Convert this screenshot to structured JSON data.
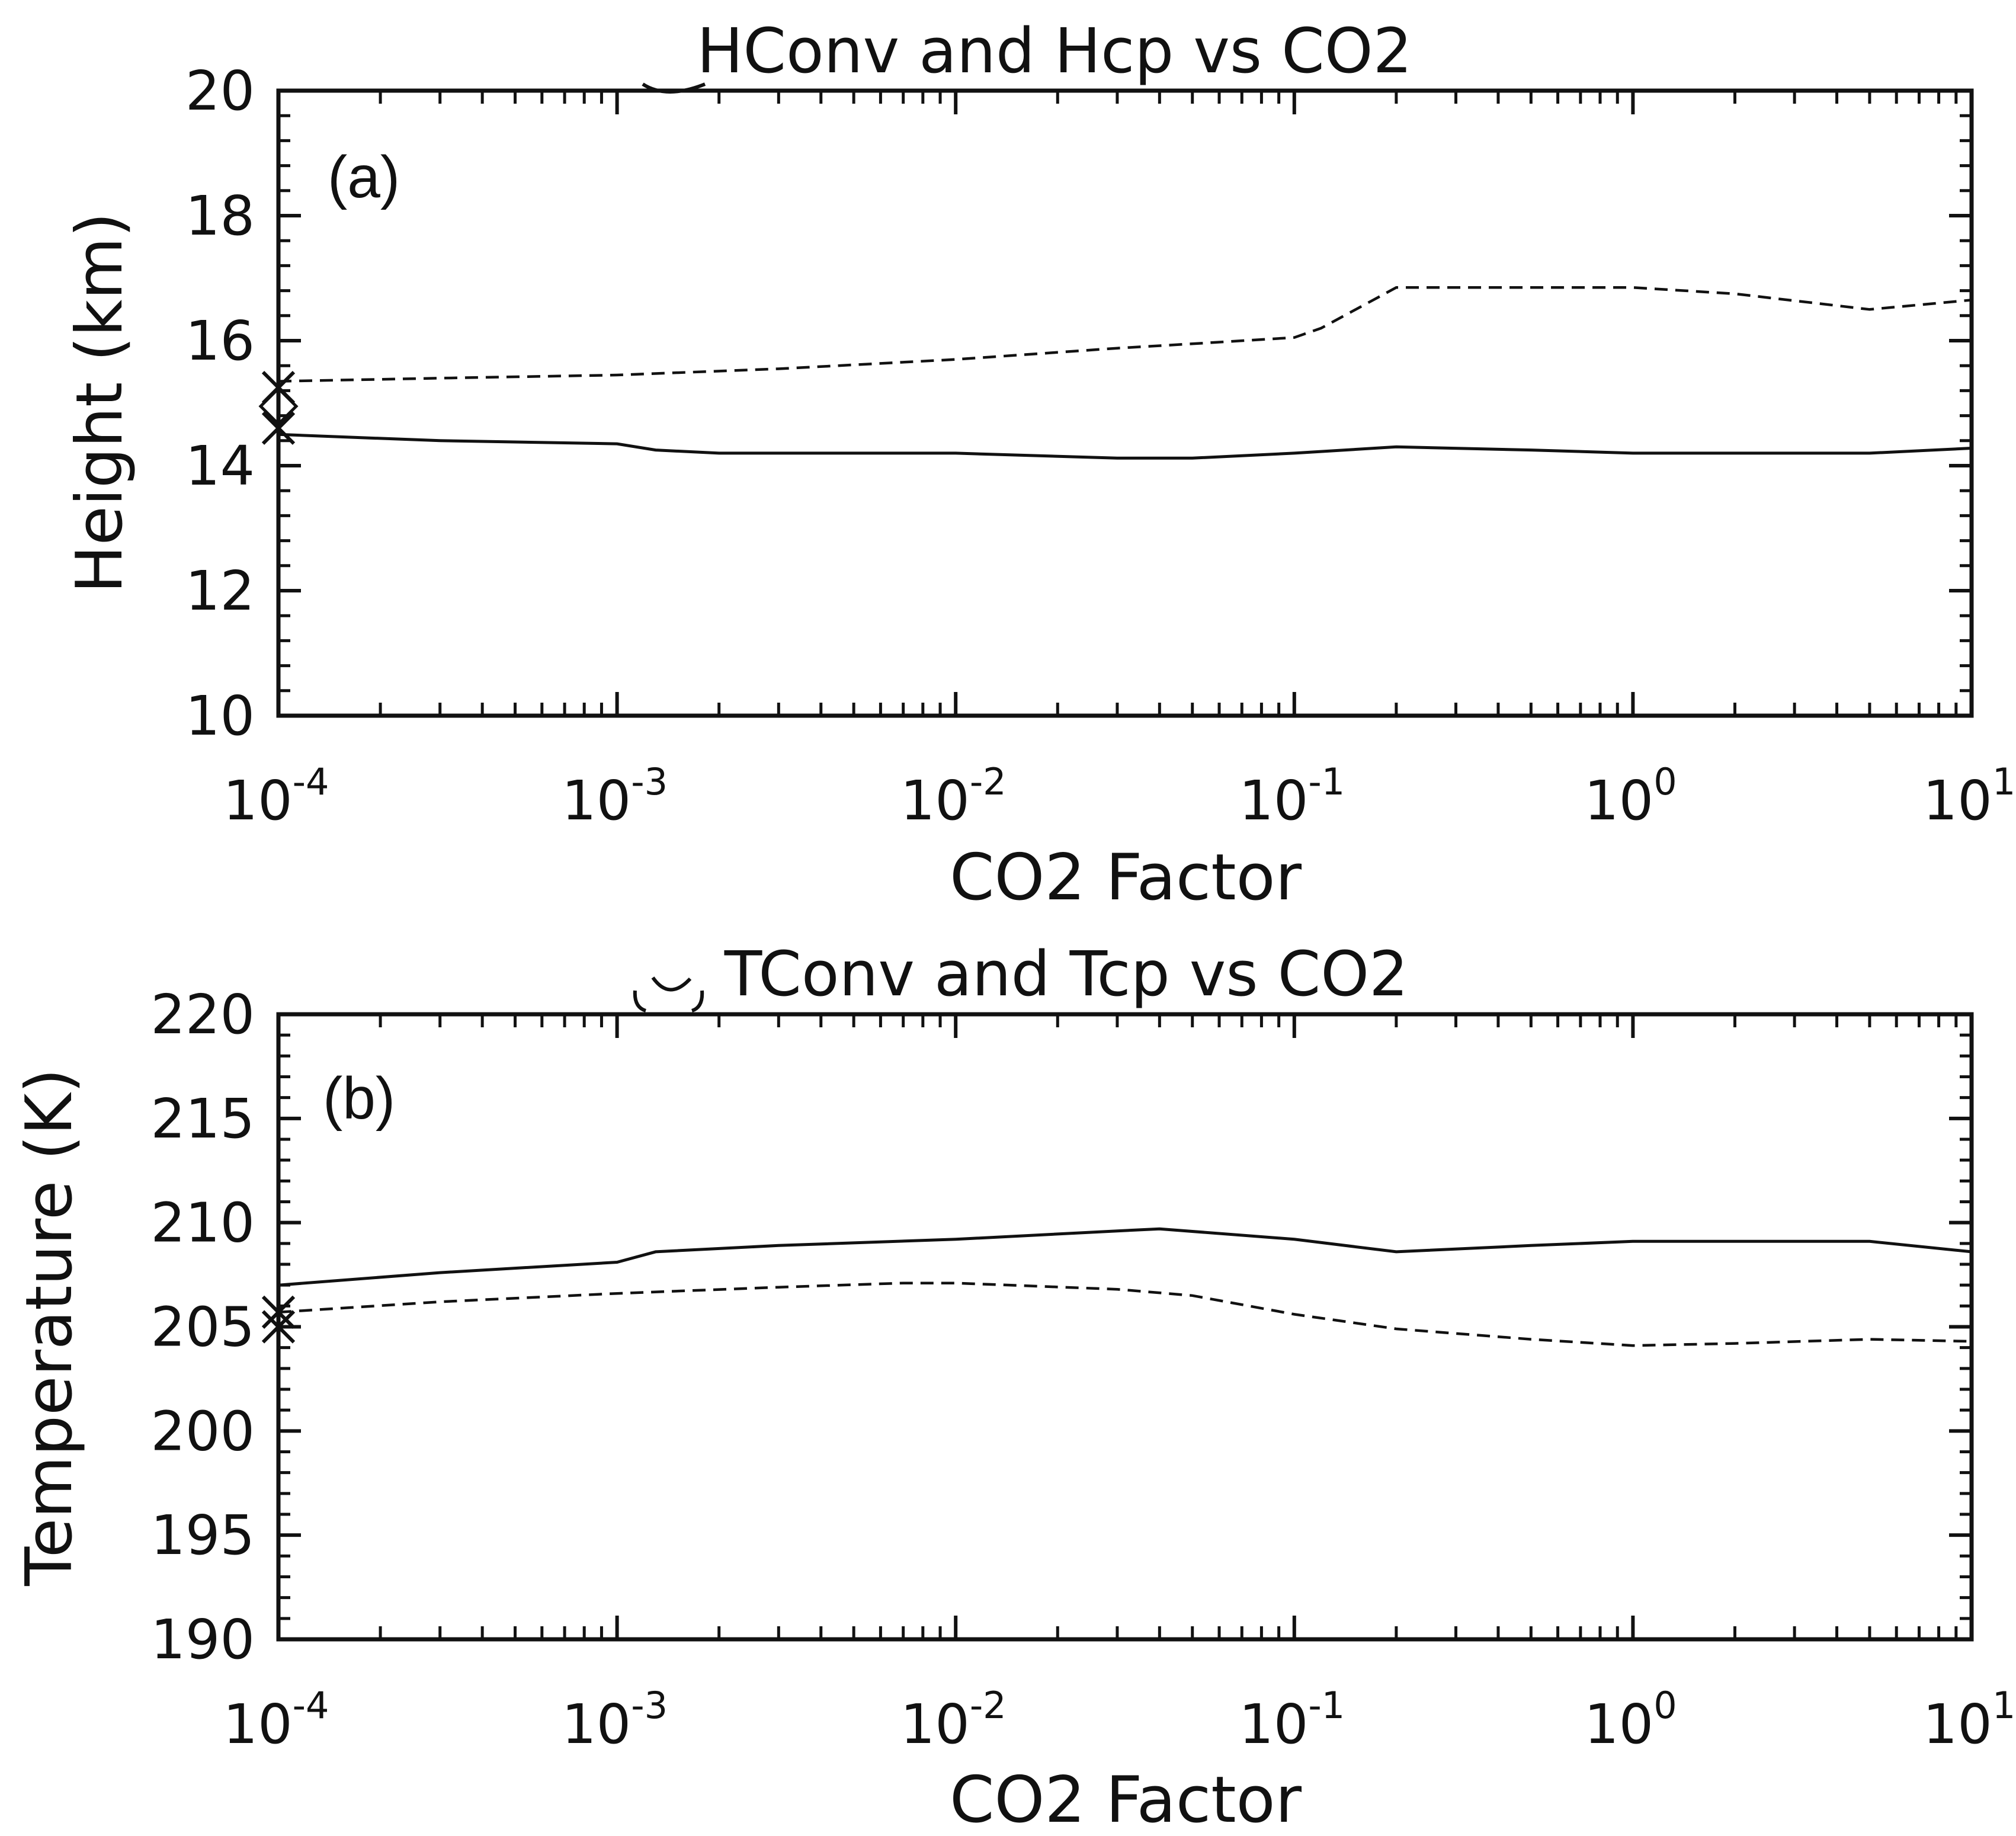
{
  "chart_data": [
    {
      "type": "line",
      "panel_label": "(a)",
      "title": "HConv and Hcp vs CO2",
      "xlabel": "CO2 Factor",
      "ylabel": "Height  (km)",
      "xscale": "log",
      "xlim": [
        0.0001,
        10
      ],
      "ylim": [
        10,
        20
      ],
      "xticks": [
        0.0001,
        0.001,
        0.01,
        0.1,
        1,
        10
      ],
      "xtick_labels": [
        {
          "base": "10",
          "exp": "-4"
        },
        {
          "base": "10",
          "exp": "-3"
        },
        {
          "base": "10",
          "exp": "-2"
        },
        {
          "base": "10",
          "exp": "-1"
        },
        {
          "base": "10",
          "exp": "0"
        },
        {
          "base": "10",
          "exp": "1"
        }
      ],
      "yticks": [
        10,
        12,
        14,
        16,
        18,
        20
      ],
      "ytick_labels": [
        "10",
        "12",
        "14",
        "16",
        "18",
        "20"
      ],
      "grid": false,
      "series": [
        {
          "name": "solid",
          "style": "solid",
          "x": [
            0.0001,
            0.0003,
            0.001,
            0.0013,
            0.002,
            0.005,
            0.01,
            0.03,
            0.05,
            0.1,
            0.2,
            0.5,
            1,
            2,
            5,
            10
          ],
          "y": [
            14.5,
            14.4,
            14.35,
            14.25,
            14.2,
            14.2,
            14.2,
            14.12,
            14.12,
            14.2,
            14.3,
            14.25,
            14.2,
            14.2,
            14.2,
            14.28
          ]
        },
        {
          "name": "dashed",
          "style": "dashed",
          "x": [
            0.0001,
            0.0003,
            0.001,
            0.003,
            0.01,
            0.03,
            0.05,
            0.1,
            0.12,
            0.2,
            0.5,
            1,
            2,
            5,
            10
          ],
          "y": [
            15.35,
            15.4,
            15.45,
            15.55,
            15.7,
            15.88,
            15.95,
            16.05,
            16.2,
            16.85,
            16.85,
            16.85,
            16.75,
            16.5,
            16.65
          ]
        }
      ],
      "markers": [
        {
          "x": 0.0001,
          "y": 14.6,
          "symbol": "x"
        },
        {
          "x": 0.0001,
          "y": 15.25,
          "symbol": "x"
        },
        {
          "x": 0.0001,
          "y": 14.95,
          "symbol": "diamond"
        }
      ]
    },
    {
      "type": "line",
      "panel_label": "(b)",
      "title": "TConv and Tcp vs CO2",
      "xlabel": "CO2 Factor",
      "ylabel": "Temperature  (K)",
      "xscale": "log",
      "xlim": [
        0.0001,
        10
      ],
      "ylim": [
        190,
        220
      ],
      "xticks": [
        0.0001,
        0.001,
        0.01,
        0.1,
        1,
        10
      ],
      "xtick_labels": [
        {
          "base": "10",
          "exp": "-4"
        },
        {
          "base": "10",
          "exp": "-3"
        },
        {
          "base": "10",
          "exp": "-2"
        },
        {
          "base": "10",
          "exp": "-1"
        },
        {
          "base": "10",
          "exp": "0"
        },
        {
          "base": "10",
          "exp": "1"
        }
      ],
      "yticks": [
        190,
        195,
        200,
        205,
        210,
        215,
        220
      ],
      "ytick_labels": [
        "190",
        "195",
        "200",
        "205",
        "210",
        "215",
        "220"
      ],
      "grid": false,
      "series": [
        {
          "name": "solid",
          "style": "solid",
          "x": [
            0.0001,
            0.0003,
            0.001,
            0.0013,
            0.003,
            0.01,
            0.03,
            0.04,
            0.1,
            0.2,
            0.5,
            1,
            2,
            5,
            10
          ],
          "y": [
            207.0,
            207.6,
            208.1,
            208.6,
            208.9,
            209.2,
            209.6,
            209.7,
            209.2,
            208.6,
            208.9,
            209.1,
            209.1,
            209.1,
            208.6
          ]
        },
        {
          "name": "dashed",
          "style": "dashed",
          "x": [
            0.0001,
            0.0003,
            0.001,
            0.003,
            0.007,
            0.01,
            0.03,
            0.05,
            0.1,
            0.2,
            0.5,
            1,
            2,
            5,
            10
          ],
          "y": [
            205.7,
            206.2,
            206.6,
            206.9,
            207.1,
            207.1,
            206.8,
            206.5,
            205.6,
            204.9,
            204.4,
            204.1,
            204.2,
            204.4,
            204.3
          ]
        }
      ],
      "markers": [
        {
          "x": 0.0001,
          "y": 205.7,
          "symbol": "x"
        },
        {
          "x": 0.0001,
          "y": 205.0,
          "symbol": "x"
        }
      ]
    }
  ]
}
